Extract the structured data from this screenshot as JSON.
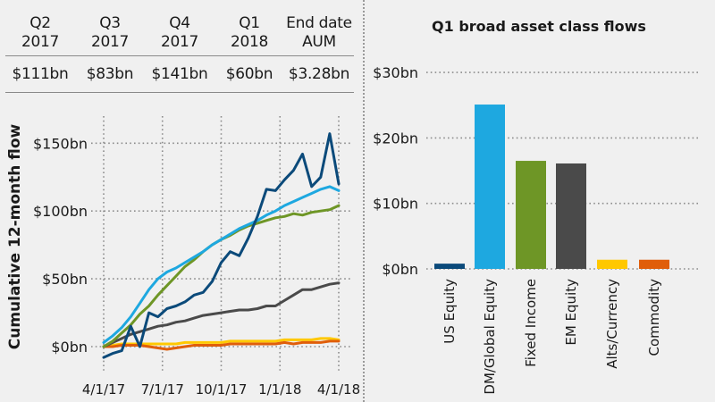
{
  "summary_table": {
    "headers": [
      "Q2\n2017",
      "Q3\n2017",
      "Q4\n2017",
      "Q1\n2018",
      "End date\nAUM"
    ],
    "values": [
      "$111bn",
      "$83bn",
      "$141bn",
      "$60bn",
      "$3.28bn"
    ]
  },
  "chart_data": [
    {
      "type": "line",
      "title": "",
      "xlabel": "",
      "ylabel": "Cumulative 12-month flow",
      "x_start": "4/1/17",
      "x_end": "4/1/18",
      "x_ticks": [
        "4/1/17",
        "7/1/17",
        "10/1/17",
        "1/1/18",
        "4/1/18"
      ],
      "y_ticks": [
        "$0bn",
        "$50bn",
        "$100bn",
        "$150bn"
      ],
      "ylim": [
        -20,
        170
      ],
      "grid": true,
      "legend": "none",
      "series": [
        {
          "name": "Alts/Currency",
          "color": "#ffc800",
          "values": [
            0,
            1,
            2,
            2,
            2,
            2,
            2,
            2,
            2,
            3,
            3,
            3,
            3,
            3,
            4,
            4,
            4,
            4,
            4,
            4,
            5,
            5,
            5,
            5,
            6,
            6,
            5
          ]
        },
        {
          "name": "Commodity",
          "color": "#e05e0a",
          "values": [
            0,
            0,
            1,
            1,
            1,
            0,
            -1,
            -2,
            -1,
            0,
            1,
            1,
            1,
            1,
            2,
            2,
            2,
            2,
            2,
            2,
            3,
            2,
            3,
            3,
            3,
            4,
            4
          ]
        },
        {
          "name": "EM Equity",
          "color": "#4a4a4a",
          "values": [
            0,
            3,
            6,
            9,
            11,
            13,
            15,
            16,
            18,
            19,
            21,
            23,
            24,
            25,
            26,
            27,
            27,
            28,
            30,
            30,
            34,
            38,
            42,
            42,
            44,
            46,
            47
          ]
        },
        {
          "name": "Fixed Income",
          "color": "#6e9626",
          "values": [
            0,
            4,
            10,
            16,
            24,
            30,
            38,
            45,
            52,
            59,
            64,
            70,
            75,
            79,
            82,
            86,
            89,
            91,
            93,
            95,
            96,
            98,
            97,
            99,
            100,
            101,
            104
          ]
        },
        {
          "name": "DM/Global Equity",
          "color": "#1ea8e0",
          "values": [
            3,
            8,
            14,
            22,
            32,
            42,
            50,
            55,
            58,
            62,
            66,
            70,
            75,
            79,
            83,
            87,
            90,
            93,
            97,
            100,
            104,
            107,
            110,
            113,
            116,
            118,
            115
          ]
        },
        {
          "name": "US Equity",
          "color": "#0b4a7a",
          "values": [
            -8,
            -5,
            -3,
            15,
            0,
            25,
            22,
            28,
            30,
            33,
            38,
            40,
            48,
            62,
            70,
            67,
            80,
            96,
            116,
            115,
            123,
            130,
            142,
            118,
            125,
            157,
            120
          ]
        }
      ]
    },
    {
      "type": "bar",
      "title": "Q1 broad asset class flows",
      "xlabel": "",
      "ylabel": "",
      "categories": [
        "US Equity",
        "DM/Global Equity",
        "Fixed Income",
        "EM Equity",
        "Alts/Currency",
        "Commodity"
      ],
      "values": [
        0.8,
        25.1,
        16.5,
        16.1,
        1.4,
        1.4
      ],
      "colors": [
        "#0b4a7a",
        "#1ea8e0",
        "#6e9626",
        "#4a4a4a",
        "#ffc800",
        "#e05e0a"
      ],
      "y_ticks": [
        "$0bn",
        "$10bn",
        "$20bn",
        "$30bn"
      ],
      "ylim": [
        0,
        30
      ],
      "grid": true
    }
  ]
}
